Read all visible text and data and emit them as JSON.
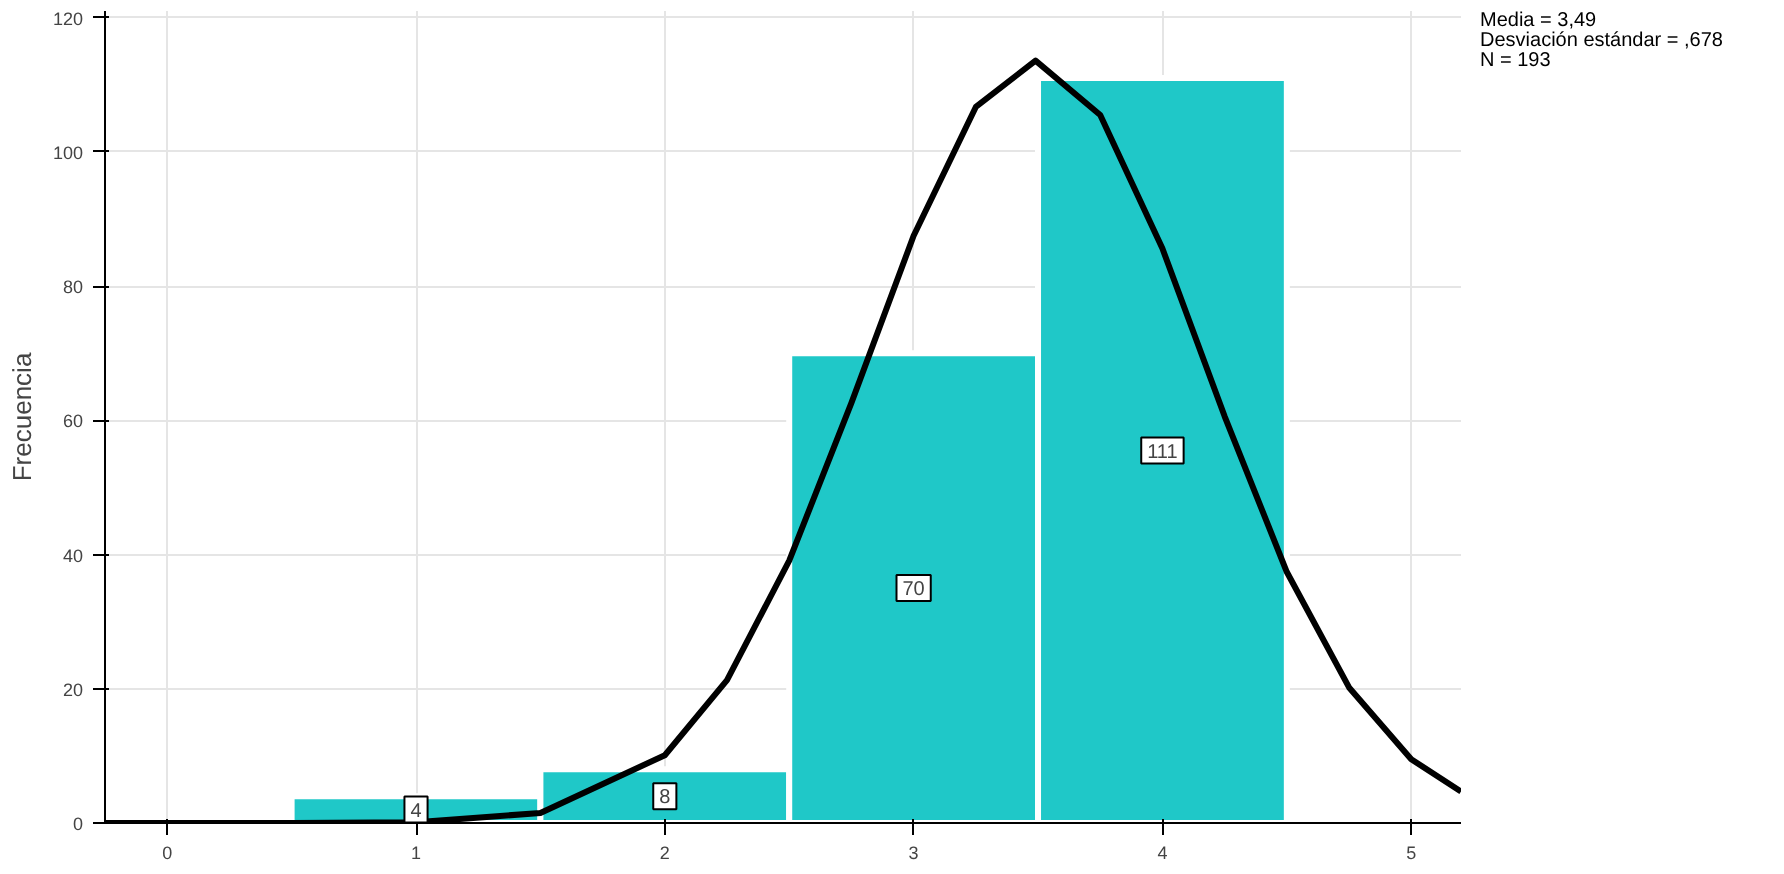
{
  "chart_data": {
    "type": "histogram",
    "ylabel": "Frecuencia",
    "bins": [
      0.5,
      1.5,
      2.5,
      3.5,
      4.5
    ],
    "values": [
      4,
      8,
      70,
      111
    ],
    "color": "#1fc8c8",
    "value_labels": [
      "4",
      "8",
      "70",
      "111"
    ],
    "series": [
      {
        "type": "line",
        "color": "#000000",
        "x": [
          -0.25,
          0,
          0.5,
          1,
          1.5,
          2,
          2.25,
          2.5,
          2.75,
          3,
          3.25,
          3.49,
          3.75,
          4,
          4.25,
          4.5,
          4.75,
          5,
          5.2
        ],
        "values": [
          0,
          0,
          0,
          0.1,
          1.5,
          10.1,
          21.3,
          39.1,
          62.6,
          87.5,
          106.7,
          113.6,
          105.5,
          85.6,
          60.6,
          37.4,
          20.2,
          9.5,
          4.7
        ]
      }
    ],
    "xlim": [
      -0.25,
      5.2
    ],
    "xticks": [
      0,
      1,
      2,
      3,
      4,
      5
    ],
    "ylim": [
      0,
      121
    ],
    "yticks": [
      0,
      20,
      40,
      60,
      80,
      100,
      120
    ],
    "grid": true,
    "annotations": [
      "Media = 3,49",
      "Desviación estándar = ,678",
      "N = 193"
    ]
  }
}
